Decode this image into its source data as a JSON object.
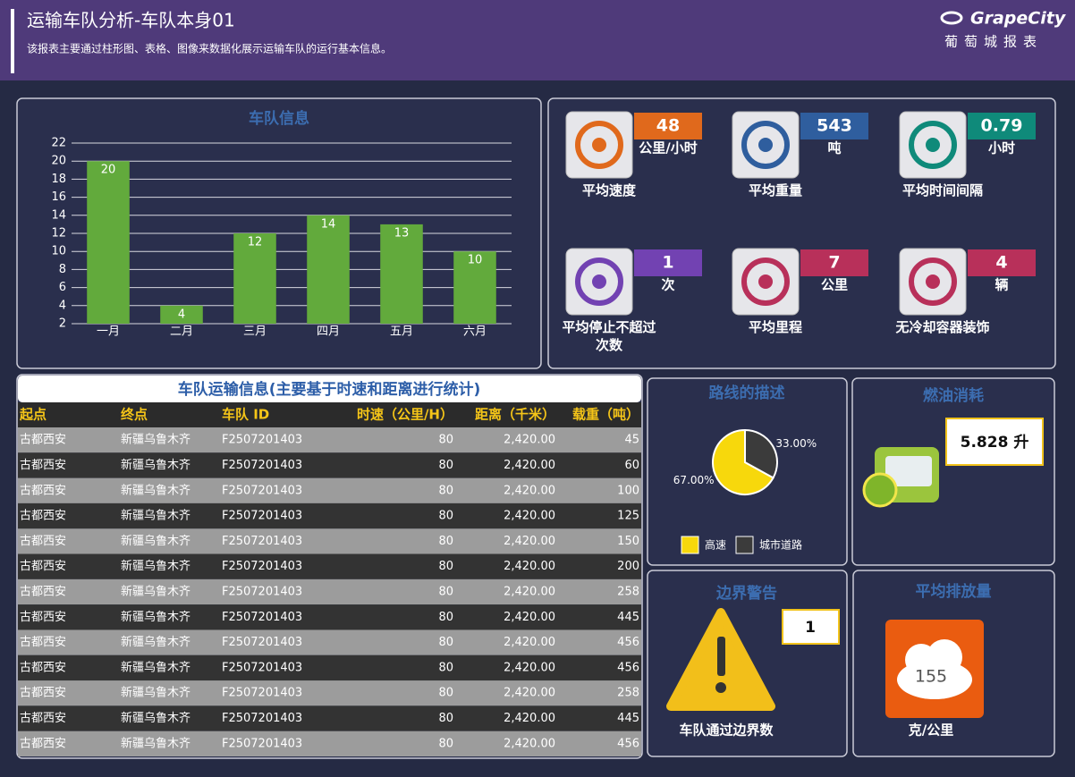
{
  "header": {
    "title": "运输车队分析-车队本身01",
    "subtitle": "该报表主要通过柱形图、表格、图像来数据化展示运输车队的运行基本信息。",
    "brand": "GrapeCity",
    "brand_subtitle": "葡萄城报表"
  },
  "chart_data": [
    {
      "type": "bar",
      "title": "车队信息",
      "categories": [
        "一月",
        "二月",
        "三月",
        "四月",
        "五月",
        "六月"
      ],
      "values": [
        20,
        4,
        12,
        14,
        13,
        10
      ],
      "color": "#62aa3c",
      "ylim": [
        2,
        22
      ],
      "yticks": [
        2,
        4,
        6,
        8,
        10,
        12,
        14,
        16,
        18,
        20,
        22
      ],
      "grid": true
    },
    {
      "type": "pie",
      "title": "路线的描述",
      "categories": [
        "高速",
        "城市道路"
      ],
      "values": [
        67,
        33
      ],
      "value_labels": [
        "67.00%",
        "33.00%"
      ],
      "colors": [
        "#f7d80c",
        "#3b3b3b"
      ]
    }
  ],
  "kpis": [
    {
      "value": 48,
      "unit": "公里/小时",
      "label": "平均速度",
      "color": "#e0691c"
    },
    {
      "value": 543,
      "unit": "吨",
      "label": "平均重量",
      "color": "#2f5e9e"
    },
    {
      "value": 0.79,
      "unit": "小时",
      "label": "平均时间间隔",
      "color": "#0f8a7a"
    },
    {
      "value": 1,
      "unit": "次",
      "label": "平均停止不超过次数",
      "color": "#7242b2"
    },
    {
      "value": 7,
      "unit": "公里",
      "label": "平均里程",
      "color": "#b8305a"
    },
    {
      "value": 4,
      "unit": "辆",
      "label": "无冷却容器装饰",
      "color": "#b8305a"
    }
  ],
  "table": {
    "title": "车队运输信息(主要基于时速和距离进行统计)",
    "columns": [
      "起点",
      "终点",
      "车队 ID",
      "时速（公里/H）",
      "距离（千米）",
      "载重（吨）"
    ],
    "rows": [
      [
        "古都西安",
        "新疆乌鲁木齐",
        "F2507201403",
        "80",
        "2,420.00",
        "45"
      ],
      [
        "古都西安",
        "新疆乌鲁木齐",
        "F2507201403",
        "80",
        "2,420.00",
        "60"
      ],
      [
        "古都西安",
        "新疆乌鲁木齐",
        "F2507201403",
        "80",
        "2,420.00",
        "100"
      ],
      [
        "古都西安",
        "新疆乌鲁木齐",
        "F2507201403",
        "80",
        "2,420.00",
        "125"
      ],
      [
        "古都西安",
        "新疆乌鲁木齐",
        "F2507201403",
        "80",
        "2,420.00",
        "150"
      ],
      [
        "古都西安",
        "新疆乌鲁木齐",
        "F2507201403",
        "80",
        "2,420.00",
        "200"
      ],
      [
        "古都西安",
        "新疆乌鲁木齐",
        "F2507201403",
        "80",
        "2,420.00",
        "258"
      ],
      [
        "古都西安",
        "新疆乌鲁木齐",
        "F2507201403",
        "80",
        "2,420.00",
        "445"
      ],
      [
        "古都西安",
        "新疆乌鲁木齐",
        "F2507201403",
        "80",
        "2,420.00",
        "456"
      ],
      [
        "古都西安",
        "新疆乌鲁木齐",
        "F2507201403",
        "80",
        "2,420.00",
        "456"
      ],
      [
        "古都西安",
        "新疆乌鲁木齐",
        "F2507201403",
        "80",
        "2,420.00",
        "258"
      ],
      [
        "古都西安",
        "新疆乌鲁木齐",
        "F2507201403",
        "80",
        "2,420.00",
        "445"
      ],
      [
        "古都西安",
        "新疆乌鲁木齐",
        "F2507201403",
        "80",
        "2,420.00",
        "456"
      ]
    ]
  },
  "fuel": {
    "title": "燃油消耗",
    "value": "5.828 升"
  },
  "border": {
    "title": "边界警告",
    "value": 1,
    "caption": "车队通过边界数"
  },
  "emission": {
    "title": "平均排放量",
    "value": 155,
    "unit": "克/公里"
  }
}
